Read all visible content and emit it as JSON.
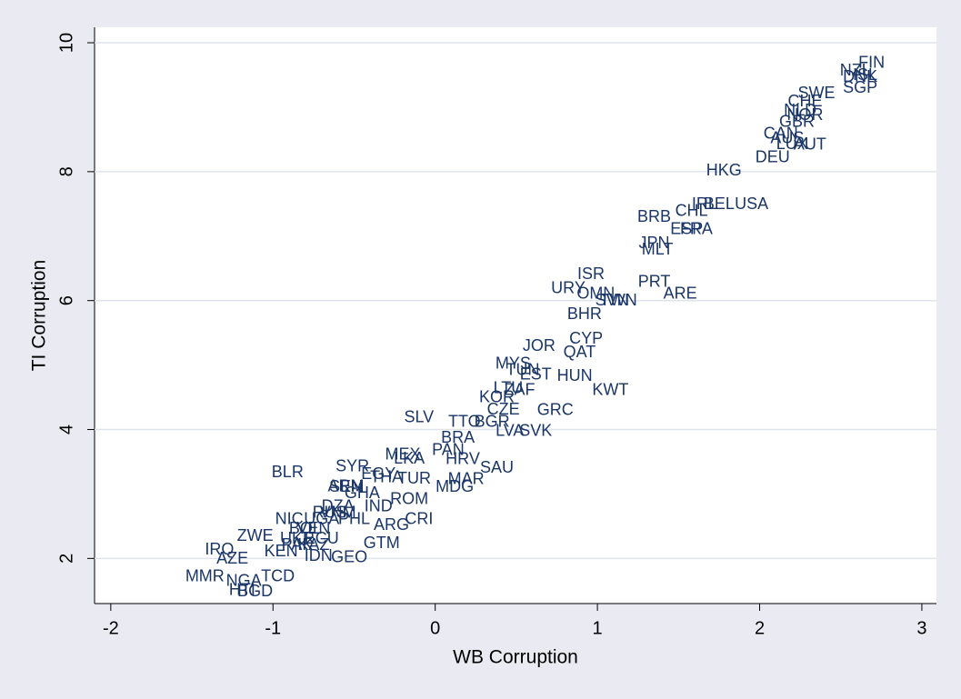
{
  "chart_data": {
    "type": "scatter",
    "x_label": "WB Corruption",
    "y_label": "TI Corruption",
    "color": "#1a3668",
    "xlim": [
      -2.1,
      3.09
    ],
    "ylim": [
      1.3,
      10.24
    ],
    "xticks": [
      -2,
      -1,
      0,
      1,
      2,
      3
    ],
    "yticks": [
      2,
      4,
      6,
      8,
      10
    ],
    "grid": true,
    "labels": [
      "FIN",
      "NZL",
      "ISL",
      "DNK",
      "SGP",
      "SWE",
      "CHE",
      "NLD",
      "NOR",
      "GBR",
      "CAN",
      "AUS",
      "LUX",
      "AUT",
      "DEU",
      "HKG",
      "IRL",
      "BEL",
      "USA",
      "CHL",
      "BRB",
      "ESP",
      "FRA",
      "JPN",
      "MLT",
      "ISR",
      "PRT",
      "URY",
      "ARE",
      "OMN",
      "SVN",
      "TWN",
      "BHR",
      "CYP",
      "JOR",
      "QAT",
      "MYS",
      "TUN",
      "EST",
      "HUN",
      "KWT",
      "LTU",
      "ZAF",
      "KOR",
      "GRC",
      "CZE",
      "SLV",
      "TTO",
      "BGR",
      "LVA",
      "SVK",
      "BRA",
      "PAN",
      "MEX",
      "BLR",
      "SAU",
      "HRV",
      "LKA",
      "MAR",
      "MDG",
      "ARM",
      "SYR",
      "TUR",
      "EGY",
      "THA",
      "SEN",
      "ROM",
      "GHA",
      "IND",
      "CRI",
      "ARG",
      "PHL",
      "VNM",
      "UGA",
      "NIC",
      "DZA",
      "RUS",
      "VEN",
      "BOL",
      "ECU",
      "UKR",
      "PAK",
      "KAZ",
      "KEN",
      "ZWE",
      "IRQ",
      "AZE",
      "GEO",
      "IDN",
      "GTM",
      "MMR",
      "NGA",
      "HTI",
      "BGD",
      "TCD"
    ],
    "x": [
      2.69,
      2.59,
      2.65,
      2.62,
      2.62,
      2.35,
      2.28,
      2.25,
      2.28,
      2.23,
      2.13,
      2.17,
      2.2,
      2.31,
      2.08,
      1.78,
      1.66,
      1.75,
      1.95,
      1.58,
      1.35,
      1.55,
      1.61,
      1.35,
      1.37,
      0.96,
      1.35,
      0.82,
      1.51,
      0.99,
      1.09,
      1.13,
      0.92,
      0.93,
      0.64,
      0.89,
      0.48,
      0.54,
      0.62,
      0.86,
      1.08,
      0.45,
      0.52,
      0.38,
      0.74,
      0.42,
      -0.1,
      0.18,
      0.35,
      0.46,
      0.62,
      0.14,
      0.08,
      -0.2,
      -0.91,
      0.38,
      0.17,
      -0.16,
      0.19,
      0.12,
      -0.55,
      -0.51,
      -0.13,
      -0.35,
      -0.3,
      -0.55,
      -0.16,
      -0.45,
      -0.35,
      -0.1,
      -0.27,
      -0.5,
      -0.6,
      -0.7,
      -0.9,
      -0.6,
      -0.65,
      -0.75,
      -0.8,
      -0.7,
      -0.85,
      -0.85,
      -0.75,
      -0.95,
      -1.11,
      -1.33,
      -1.25,
      -0.53,
      -0.72,
      -0.33,
      -1.42,
      -1.18,
      -1.19,
      -1.11,
      -0.97
    ],
    "values": [
      9.68,
      9.56,
      9.49,
      9.46,
      9.29,
      9.21,
      9.08,
      8.94,
      8.87,
      8.76,
      8.58,
      8.51,
      8.42,
      8.41,
      8.21,
      8.01,
      7.49,
      7.49,
      7.49,
      7.38,
      7.29,
      7.1,
      7.1,
      6.88,
      6.78,
      6.4,
      6.28,
      6.18,
      6.1,
      6.1,
      5.99,
      5.99,
      5.78,
      5.4,
      5.29,
      5.19,
      5.01,
      4.91,
      4.84,
      4.82,
      4.6,
      4.63,
      4.6,
      4.49,
      4.29,
      4.3,
      4.18,
      4.11,
      4.11,
      3.97,
      3.97,
      3.86,
      3.67,
      3.6,
      3.33,
      3.4,
      3.53,
      3.54,
      3.22,
      3.1,
      3.11,
      3.42,
      3.23,
      3.3,
      3.25,
      3.1,
      2.91,
      3.0,
      2.8,
      2.6,
      2.51,
      2.6,
      2.7,
      2.6,
      2.6,
      2.8,
      2.7,
      2.45,
      2.45,
      2.3,
      2.3,
      2.2,
      2.2,
      2.1,
      2.34,
      2.13,
      1.99,
      2.01,
      2.03,
      2.23,
      1.71,
      1.64,
      1.5,
      1.48,
      1.71
    ]
  }
}
